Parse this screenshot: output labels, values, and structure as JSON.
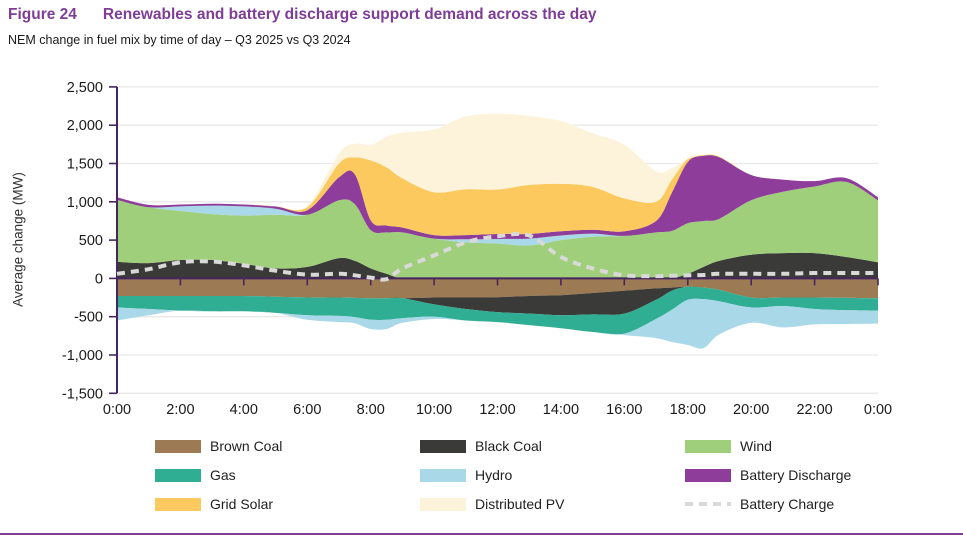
{
  "header": {
    "figure_label": "Figure 24",
    "title": "Renewables and battery discharge support demand across the day",
    "subtitle": "NEM change in fuel mix by time of day – Q3 2025 vs Q3 2024"
  },
  "colors": {
    "title_purple": "#7e3d97",
    "axis_purple": "#46265f",
    "gridline": "#e9e9e9",
    "tick_text": "#1a1a1a",
    "bottom_rule": "#7e3d97"
  },
  "chart_data": {
    "type": "area",
    "stacked": true,
    "diverging": true,
    "grid": true,
    "x_hours": [
      0,
      1,
      2,
      3,
      4,
      5,
      6,
      7,
      7.5,
      8,
      8.5,
      9,
      10,
      11,
      12,
      13,
      14,
      15,
      16,
      17,
      17.5,
      18,
      18.5,
      19,
      20,
      21,
      22,
      23,
      24
    ],
    "x_axis": {
      "tick_hours": [
        0,
        2,
        4,
        6,
        8,
        10,
        12,
        14,
        16,
        18,
        20,
        22,
        24
      ],
      "tick_labels": [
        "0:00",
        "2:00",
        "4:00",
        "6:00",
        "8:00",
        "10:00",
        "12:00",
        "14:00",
        "16:00",
        "18:00",
        "20:00",
        "22:00",
        "0:00"
      ]
    },
    "y_axis": {
      "title": "Average change (MW)",
      "unit": "MW",
      "min": -1500,
      "max": 2500,
      "tick_values": [
        2500,
        2000,
        1500,
        1000,
        500,
        0,
        -500,
        -1000,
        -1500
      ],
      "tick_labels": [
        "2,500",
        "2,000",
        "1,500",
        "1,000",
        "500",
        "0",
        "-500",
        "-1,000",
        "-1,500"
      ]
    },
    "series": [
      {
        "name": "Brown Coal",
        "color": "#9c7a53",
        "values": [
          -230,
          -230,
          -230,
          -230,
          -230,
          -240,
          -250,
          -250,
          -255,
          -260,
          -260,
          -260,
          -250,
          -250,
          -245,
          -230,
          -220,
          -190,
          -160,
          -130,
          -120,
          -110,
          -120,
          -150,
          -250,
          -250,
          -250,
          -255,
          -260
        ]
      },
      {
        "name": "Black Coal",
        "color": "#3a3a38",
        "values": [
          215,
          200,
          240,
          240,
          190,
          130,
          150,
          265,
          230,
          130,
          60,
          0,
          -90,
          -150,
          -195,
          -230,
          -260,
          -280,
          -300,
          -150,
          -40,
          60,
          150,
          230,
          310,
          330,
          330,
          280,
          210
        ]
      },
      {
        "name": "Wind",
        "color": "#a0cf7c",
        "values": [
          810,
          730,
          640,
          600,
          630,
          700,
          680,
          755,
          740,
          500,
          540,
          600,
          520,
          470,
          455,
          430,
          500,
          545,
          555,
          600,
          620,
          660,
          600,
          550,
          710,
          800,
          870,
          980,
          810
        ]
      },
      {
        "name": "Gas",
        "color": "#2fae93",
        "values": [
          -150,
          -170,
          -190,
          -200,
          -200,
          -210,
          -230,
          -240,
          -250,
          -280,
          -280,
          -260,
          -160,
          -150,
          -130,
          -150,
          -170,
          -230,
          -260,
          -250,
          -250,
          -170,
          -150,
          -150,
          -130,
          -110,
          -150,
          -160,
          -160
        ]
      },
      {
        "name": "Hydro",
        "color": "#a9d8e8",
        "values": [
          -170,
          -80,
          60,
          110,
          120,
          80,
          -60,
          -80,
          -80,
          -120,
          -120,
          -60,
          -30,
          40,
          60,
          90,
          60,
          40,
          -20,
          -250,
          -420,
          -590,
          -640,
          -430,
          -200,
          -280,
          -200,
          -180,
          -170
        ]
      },
      {
        "name": "Battery Discharge",
        "color": "#8e3d9b",
        "values": [
          35,
          30,
          25,
          25,
          25,
          30,
          60,
          300,
          390,
          130,
          90,
          65,
          45,
          55,
          65,
          60,
          55,
          50,
          60,
          150,
          500,
          800,
          850,
          800,
          330,
          160,
          70,
          50,
          40
        ]
      },
      {
        "name": "Grid Solar",
        "color": "#fcc95e",
        "values": [
          0,
          0,
          0,
          0,
          0,
          0,
          40,
          180,
          220,
          780,
          760,
          640,
          560,
          600,
          580,
          640,
          620,
          560,
          430,
          250,
          170,
          40,
          10,
          10,
          0,
          0,
          0,
          0,
          0
        ]
      },
      {
        "name": "Distributed PV",
        "color": "#fdf3da",
        "values": [
          0,
          0,
          0,
          0,
          0,
          0,
          20,
          130,
          180,
          200,
          400,
          600,
          820,
          950,
          990,
          900,
          820,
          700,
          700,
          400,
          150,
          0,
          0,
          0,
          0,
          0,
          0,
          0,
          0
        ]
      }
    ],
    "line_series": [
      {
        "name": "Battery Charge",
        "color": "#d9d9d9",
        "dashed": true,
        "values": [
          60,
          120,
          210,
          220,
          170,
          100,
          50,
          60,
          40,
          10,
          -10,
          130,
          300,
          470,
          550,
          560,
          280,
          130,
          40,
          30,
          35,
          40,
          45,
          60,
          60,
          60,
          70,
          70,
          70
        ]
      }
    ],
    "legend": {
      "position": "bottom",
      "items": [
        {
          "label": "Brown Coal",
          "color": "#9c7a53",
          "swatch": "rect"
        },
        {
          "label": "Black Coal",
          "color": "#3a3a38",
          "swatch": "rect"
        },
        {
          "label": "Wind",
          "color": "#a0cf7c",
          "swatch": "rect"
        },
        {
          "label": "Gas",
          "color": "#2fae93",
          "swatch": "rect"
        },
        {
          "label": "Hydro",
          "color": "#a9d8e8",
          "swatch": "rect"
        },
        {
          "label": "Battery Discharge",
          "color": "#8e3d9b",
          "swatch": "rect"
        },
        {
          "label": "Grid Solar",
          "color": "#fcc95e",
          "swatch": "rect"
        },
        {
          "label": "Distributed PV",
          "color": "#fdf3da",
          "swatch": "rect"
        },
        {
          "label": "Battery Charge",
          "color": "#d9d9d9",
          "swatch": "dash-line"
        }
      ]
    }
  }
}
